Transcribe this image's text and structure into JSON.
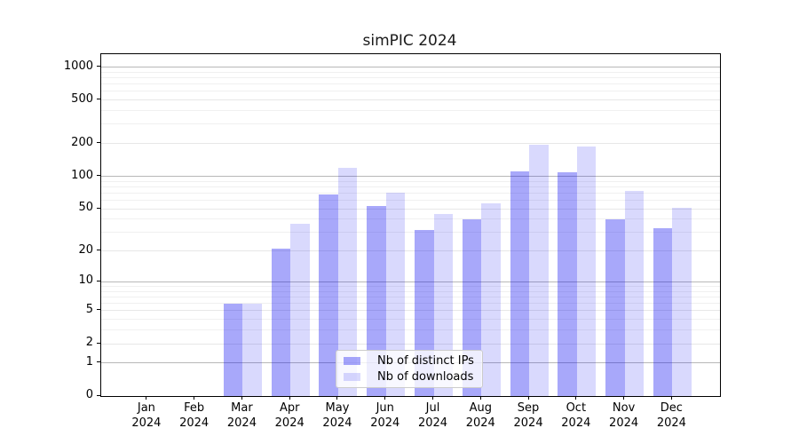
{
  "chart_data": {
    "type": "bar",
    "title": "simPIC 2024",
    "categories": [
      "Jan 2024",
      "Feb 2024",
      "Mar 2024",
      "Apr 2024",
      "May 2024",
      "Jun 2024",
      "Jul 2024",
      "Aug 2024",
      "Sep 2024",
      "Oct 2024",
      "Nov 2024",
      "Dec 2024"
    ],
    "series": [
      {
        "name": "Nb of distinct IPs",
        "color": "rgba(0,0,240,0.34)",
        "values": [
          0,
          0,
          6,
          21,
          68,
          53,
          32,
          40,
          112,
          108,
          40,
          33
        ]
      },
      {
        "name": "Nb of downloads",
        "color": "rgba(0,0,240,0.15)",
        "values": [
          0,
          0,
          6,
          36,
          120,
          71,
          45,
          56,
          195,
          188,
          73,
          51
        ]
      }
    ],
    "y_axis": {
      "scale": "symlog-log1p",
      "ticks": [
        0,
        1,
        2,
        5,
        10,
        20,
        50,
        100,
        200,
        500,
        1000
      ],
      "range": [
        0,
        1300
      ]
    },
    "xlabel": "",
    "ylabel": "",
    "legend": {
      "location": "lower center"
    },
    "grid": true,
    "colors": {
      "major_gridline": "#b8b8b8",
      "mid_gridline": "#e7e7e7",
      "minor_gridline": "#f0f0f0",
      "axis": "#000000"
    }
  }
}
